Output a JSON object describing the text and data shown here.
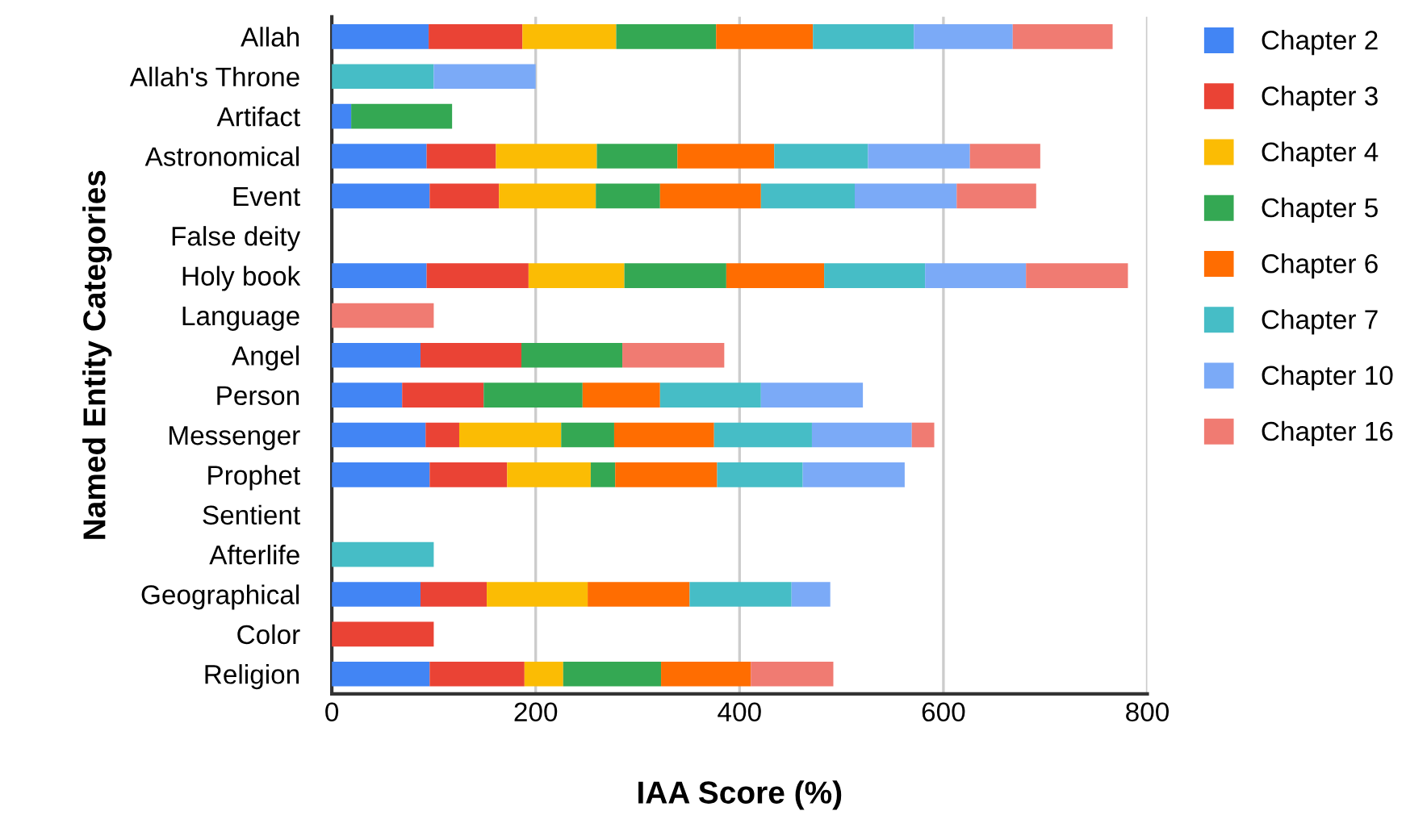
{
  "chart_data": {
    "type": "bar",
    "orientation": "horizontal",
    "stacked": true,
    "xlabel": "IAA Score (%)",
    "ylabel": "Named Entity Categories",
    "categories": [
      "Allah",
      "Allah's Throne",
      "Artifact",
      "Astronomical",
      "Event",
      "False deity",
      "Holy book",
      "Language",
      "Angel",
      "Person",
      "Messenger",
      "Prophet",
      "Sentient",
      "Afterlife",
      "Geographical",
      "Color",
      "Religion"
    ],
    "series": [
      {
        "name": "Chapter 2",
        "color": "#4285f4",
        "values": [
          95,
          0,
          19,
          93,
          96,
          0,
          93,
          0,
          87,
          69,
          92,
          96,
          0,
          0,
          87,
          0,
          96
        ]
      },
      {
        "name": "Chapter 3",
        "color": "#ea4335",
        "values": [
          92,
          0,
          0,
          68,
          68,
          0,
          100,
          0,
          99,
          80,
          33,
          76,
          0,
          0,
          65,
          100,
          93
        ]
      },
      {
        "name": "Chapter 4",
        "color": "#fbbc04",
        "values": [
          92,
          0,
          0,
          99,
          95,
          0,
          94,
          0,
          0,
          0,
          100,
          82,
          0,
          0,
          99,
          0,
          38
        ]
      },
      {
        "name": "Chapter 5",
        "color": "#34a853",
        "values": [
          98,
          0,
          99,
          79,
          63,
          0,
          100,
          0,
          99,
          97,
          52,
          24,
          0,
          0,
          0,
          0,
          96
        ]
      },
      {
        "name": "Chapter 6",
        "color": "#ff6d01",
        "values": [
          95,
          0,
          0,
          95,
          99,
          0,
          96,
          0,
          0,
          76,
          98,
          100,
          0,
          0,
          100,
          0,
          88
        ]
      },
      {
        "name": "Chapter 7",
        "color": "#46bdc6",
        "values": [
          99,
          100,
          0,
          92,
          92,
          0,
          99,
          0,
          0,
          99,
          96,
          84,
          0,
          100,
          100,
          0,
          0
        ]
      },
      {
        "name": "Chapter 10",
        "color": "#7baaf7",
        "values": [
          97,
          100,
          0,
          100,
          100,
          0,
          99,
          0,
          0,
          100,
          98,
          100,
          0,
          0,
          38,
          0,
          0
        ]
      },
      {
        "name": "Chapter 16",
        "color": "#f07b72",
        "values": [
          98,
          0,
          0,
          69,
          78,
          0,
          100,
          100,
          100,
          0,
          22,
          0,
          0,
          0,
          0,
          0,
          81
        ]
      }
    ],
    "xlim": [
      0,
      800
    ],
    "xticks": [
      0,
      200,
      400,
      600,
      800
    ],
    "grid": "x",
    "legend": "right"
  }
}
